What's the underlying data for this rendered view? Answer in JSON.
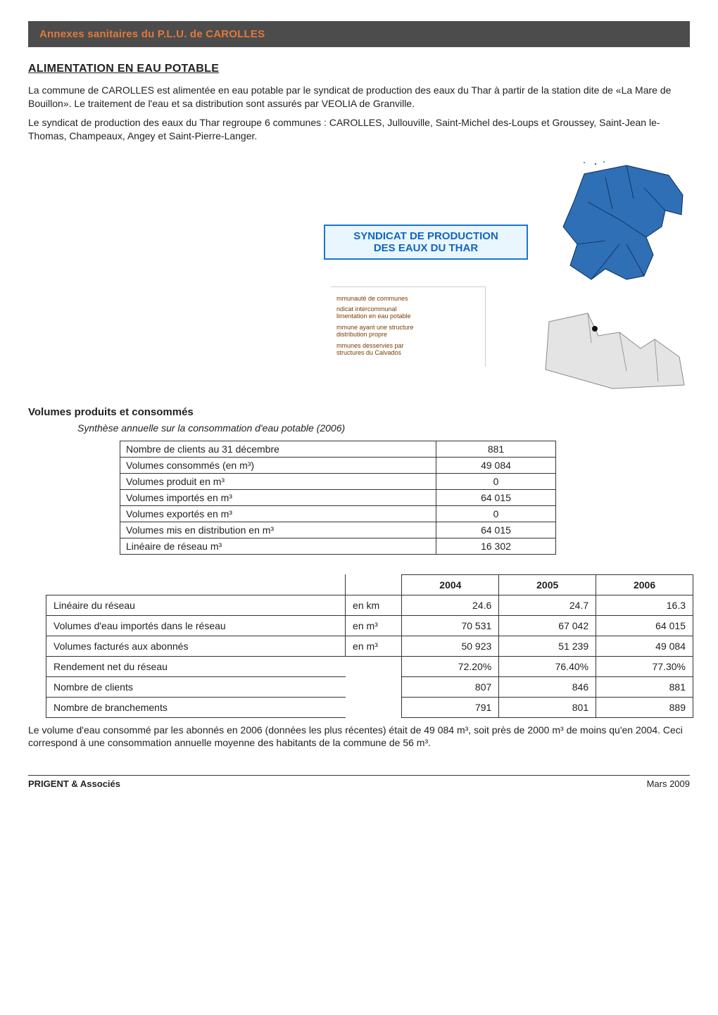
{
  "banner": "Annexes sanitaires du P.L.U. de CAROLLES",
  "section_heading": "ALIMENTATION EN EAU POTABLE",
  "para1": "La commune de CAROLLES est alimentée en eau potable par le syndicat de production des eaux du Thar à partir de la station dite de «La Mare de Bouillon». Le traitement de l'eau et sa distribution sont assurés par VEOLIA de Granville.",
  "para2": "Le syndicat de production des eaux du Thar regroupe 6 communes : CAROLLES, Jullouville, Saint-Michel des-Loups et Groussey, Saint-Jean le-Thomas, Champeaux, Angey et Saint-Pierre-Langer.",
  "syndicat": {
    "line1": "SYNDICAT DE PRODUCTION",
    "line2": "DES EAUX DU THAR"
  },
  "legend": {
    "l1": "mmunauté de communes",
    "l2a": "ndicat intercommunal",
    "l2b": "limentation en eau potable",
    "l3a": "mmune ayant une structure",
    "l3b": " distribution propre",
    "l4a": "mmunes desservies par",
    "l4b": " structures du Calvados"
  },
  "subhead": "Volumes produits et consommés",
  "synth": "Synthèse annuelle sur la consommation d'eau potable (2006)",
  "t1": {
    "rows": [
      {
        "label": "Nombre de clients au 31 décembre",
        "val": "881"
      },
      {
        "label": "Volumes consommés (en m³)",
        "val": "49 084"
      },
      {
        "label": "Volumes produit en  m³",
        "val": "0"
      },
      {
        "label": "Volumes importés en m³",
        "val": "64 015"
      },
      {
        "label": "Volumes exportés en m³",
        "val": "0"
      },
      {
        "label": "Volumes mis en distribution en m³",
        "val": "64 015"
      },
      {
        "label": "Linéaire de réseau m³",
        "val": "16 302"
      }
    ]
  },
  "t2": {
    "head": {
      "c1": "2004",
      "c2": "2005",
      "c3": "2006"
    },
    "rows": [
      {
        "label": "Linéaire du réseau",
        "unit": "en km",
        "v1": "24.6",
        "v2": "24.7",
        "v3": "16.3"
      },
      {
        "label": "Volumes d'eau importés dans le réseau",
        "unit": "en m³",
        "v1": "70 531",
        "v2": "67 042",
        "v3": "64 015"
      },
      {
        "label": "Volumes facturés aux abonnés",
        "unit": "en m³",
        "v1": "50 923",
        "v2": "51 239",
        "v3": "49 084"
      },
      {
        "label": "Rendement net du réseau",
        "unit": "",
        "v1": "72.20%",
        "v2": "76.40%",
        "v3": "77.30%"
      },
      {
        "label": "Nombre de clients",
        "unit": "",
        "v1": "807",
        "v2": "846",
        "v3": "881"
      },
      {
        "label": "Nombre de branchements",
        "unit": "",
        "v1": "791",
        "v2": "801",
        "v3": "889"
      }
    ]
  },
  "after": "Le volume d'eau consommé par les abonnés en 2006 (données les plus récentes) était de 49 084 m³, soit près de 2000 m³ de moins qu'en 2004. Ceci correspond à une consommation annuelle moyenne des habitants de la commune de 56 m³.",
  "footer": {
    "left": "PRIGENT & Associés",
    "right": "Mars 2009"
  },
  "colors": {
    "banner_bg": "#4d4c4c",
    "banner_text": "#e0793b",
    "syndicat_border": "#1976d2",
    "syndicat_bg": "#e9f6fd",
    "syndicat_text": "#1165c2",
    "map_fill": "#2e6fb6",
    "map_stroke": "#0b2d55",
    "map_grey": "#e4e4e4"
  }
}
